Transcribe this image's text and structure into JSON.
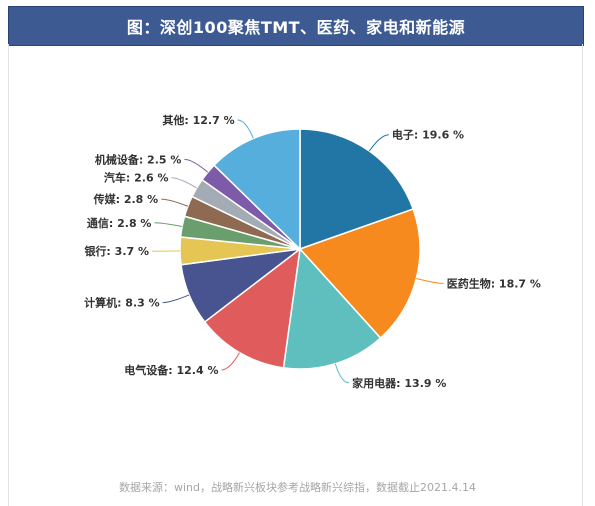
{
  "title": "图：深创100聚焦TMT、医药、家电和新能源",
  "source_note": "数据来源：wind，战略新兴板块参考战略新兴综指，数据截止2021.4.14",
  "chart_data": {
    "type": "pie",
    "title": "图：深创100聚焦TMT、医药、家电和新能源",
    "slices": [
      {
        "label": "电子",
        "value": 19.6,
        "display": "电子: 19.6 %",
        "color": "#2176a5"
      },
      {
        "label": "医药生物",
        "value": 18.7,
        "display": "医药生物: 18.7 %",
        "color": "#f68a1e"
      },
      {
        "label": "家用电器",
        "value": 13.9,
        "display": "家用电器: 13.9 %",
        "color": "#5fbfbf"
      },
      {
        "label": "电气设备",
        "value": 12.4,
        "display": "电气设备: 12.4 %",
        "color": "#e05c5c"
      },
      {
        "label": "计算机",
        "value": 8.3,
        "display": "计算机: 8.3 %",
        "color": "#48548f"
      },
      {
        "label": "银行",
        "value": 3.7,
        "display": "银行: 3.7 %",
        "color": "#e5c553"
      },
      {
        "label": "通信",
        "value": 2.8,
        "display": "通信: 2.8 %",
        "color": "#6a9e6e"
      },
      {
        "label": "传媒",
        "value": 2.8,
        "display": "传媒: 2.8 %",
        "color": "#8f6a53"
      },
      {
        "label": "汽车",
        "value": 2.6,
        "display": "汽车: 2.6 %",
        "color": "#a3abb5"
      },
      {
        "label": "机械设备",
        "value": 2.5,
        "display": "机械设备: 2.5 %",
        "color": "#7d5ba8"
      },
      {
        "label": "其他",
        "value": 12.7,
        "display": "其他: 12.7 %",
        "color": "#56aedc"
      }
    ]
  }
}
